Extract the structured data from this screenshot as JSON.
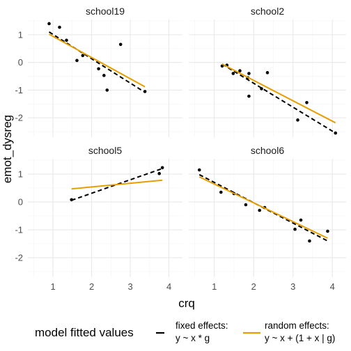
{
  "chart_data": {
    "type": "scatter",
    "xlabel": "crq",
    "ylabel": "emot_dysreg",
    "xlim": [
      0.35,
      4.35
    ],
    "ylim": [
      -2.7,
      1.55
    ],
    "x_ticks": [
      1,
      2,
      3,
      4
    ],
    "y_ticks": [
      -2,
      -1,
      0,
      1
    ],
    "grid": true,
    "facets": [
      {
        "name": "school19",
        "points": [
          [
            0.9,
            1.4
          ],
          [
            1.17,
            1.27
          ],
          [
            1.35,
            0.8
          ],
          [
            1.62,
            0.07
          ],
          [
            1.77,
            0.25
          ],
          [
            2.18,
            -0.23
          ],
          [
            2.32,
            -0.47
          ],
          [
            2.4,
            -1.0
          ],
          [
            2.75,
            0.65
          ],
          [
            3.38,
            -1.05
          ]
        ],
        "fixed": [
          [
            0.9,
            1.1
          ],
          [
            3.38,
            -1.08
          ]
        ],
        "random": [
          [
            0.9,
            1.02
          ],
          [
            3.38,
            -0.88
          ]
        ]
      },
      {
        "name": "school2",
        "points": [
          [
            1.2,
            -0.13
          ],
          [
            1.32,
            -0.1
          ],
          [
            1.48,
            -0.4
          ],
          [
            1.65,
            -0.3
          ],
          [
            1.85,
            -0.55
          ],
          [
            1.88,
            -0.4
          ],
          [
            1.88,
            -1.22
          ],
          [
            2.2,
            -0.95
          ],
          [
            2.35,
            -0.37
          ],
          [
            3.12,
            -2.08
          ],
          [
            3.35,
            -1.45
          ],
          [
            4.08,
            -2.55
          ]
        ],
        "fixed": [
          [
            1.2,
            -0.06
          ],
          [
            4.08,
            -2.55
          ]
        ],
        "random": [
          [
            1.2,
            -0.06
          ],
          [
            4.08,
            -2.18
          ]
        ]
      },
      {
        "name": "school5",
        "points": [
          [
            1.48,
            0.08
          ],
          [
            3.75,
            1.02
          ],
          [
            3.83,
            1.23
          ]
        ],
        "fixed": [
          [
            1.48,
            0.06
          ],
          [
            3.83,
            1.2
          ]
        ],
        "random": [
          [
            1.48,
            0.47
          ],
          [
            3.83,
            0.78
          ]
        ]
      },
      {
        "name": "school6",
        "points": [
          [
            0.62,
            1.15
          ],
          [
            1.17,
            0.35
          ],
          [
            1.5,
            0.3
          ],
          [
            1.8,
            -0.1
          ],
          [
            2.15,
            -0.3
          ],
          [
            2.28,
            -0.2
          ],
          [
            3.05,
            -0.98
          ],
          [
            3.2,
            -0.65
          ],
          [
            3.42,
            -1.4
          ],
          [
            3.88,
            -1.05
          ]
        ],
        "fixed": [
          [
            0.62,
            0.98
          ],
          [
            3.88,
            -1.4
          ]
        ],
        "random": [
          [
            0.62,
            0.9
          ],
          [
            3.88,
            -1.3
          ]
        ]
      }
    ],
    "legend": {
      "title": "model fitted values",
      "position": "bottom",
      "items": [
        {
          "key": "fixed",
          "line1": "fixed effects:",
          "line2": "y ~ x * g",
          "color": "#000000",
          "style": "dashed"
        },
        {
          "key": "random",
          "line1": "random effects:",
          "line2": "y ~ x + (1 + x | g)",
          "color": "#E69F00",
          "style": "solid"
        }
      ]
    },
    "colors": {
      "points": "#000000",
      "fixed": "#000000",
      "random": "#E69F00"
    }
  }
}
